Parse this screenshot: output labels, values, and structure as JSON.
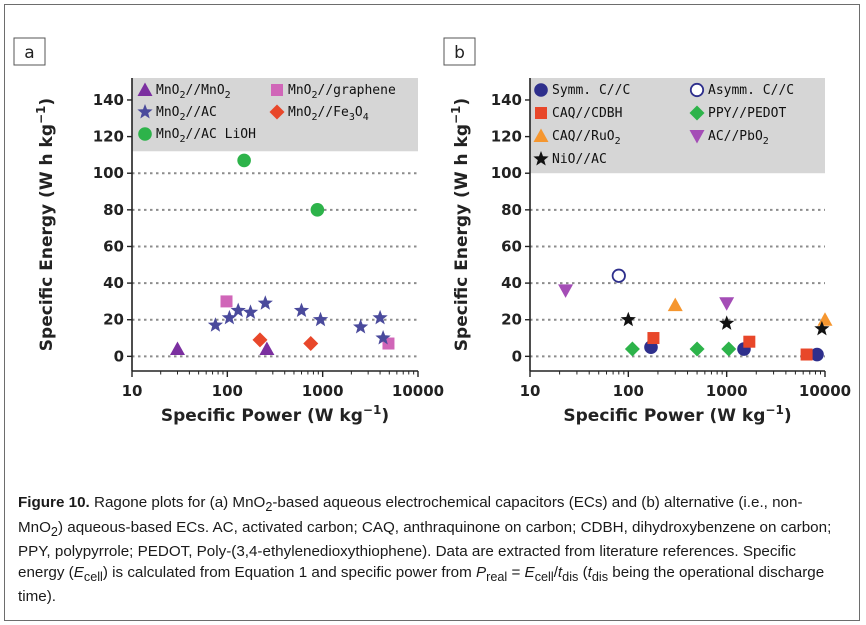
{
  "chart_data": [
    {
      "panel": "a",
      "type": "scatter",
      "xlabel_main": "Specific Power (W kg",
      "xlabel_sup": "−1",
      "xlabel_end": ")",
      "ylabel_main": "Specific Energy (W h kg",
      "ylabel_sup": "−1",
      "ylabel_end": ")",
      "xscale": "log",
      "xlim": [
        10,
        10000
      ],
      "ylim": [
        -8,
        152
      ],
      "shaded_above_y": 112,
      "xticks": [
        10,
        100,
        1000,
        10000
      ],
      "xticklabels": [
        "10",
        "100",
        "1000",
        "10000"
      ],
      "yticks": [
        0,
        20,
        40,
        60,
        80,
        100,
        120,
        140
      ],
      "yticklabels": [
        "0",
        "20",
        "40",
        "60",
        "80",
        "100",
        "120",
        "140"
      ],
      "grid": "dotted horizontal",
      "legend_position": "top",
      "series": [
        {
          "name_main": "MnO",
          "name_sub": "2",
          "name_rest": "//MnO",
          "name_sub2": "2",
          "marker": "triangle-up",
          "color": "#7b2fa0",
          "points": [
            [
              30,
              4
            ],
            [
              260,
              4
            ]
          ]
        },
        {
          "name_main": "MnO",
          "name_sub": "2",
          "name_rest": "//graphene",
          "name_sub2": "",
          "marker": "square",
          "color": "#d066b8",
          "points": [
            [
              98,
              30
            ],
            [
              4900,
              7
            ]
          ]
        },
        {
          "name_main": "MnO",
          "name_sub": "2",
          "name_rest": "//AC",
          "name_sub2": "",
          "marker": "star",
          "color": "#4a4a9c",
          "points": [
            [
              75,
              17
            ],
            [
              105,
              21
            ],
            [
              130,
              25
            ],
            [
              175,
              24
            ],
            [
              250,
              29
            ],
            [
              600,
              25
            ],
            [
              950,
              20
            ],
            [
              2500,
              16
            ],
            [
              4000,
              21
            ],
            [
              4300,
              10
            ]
          ]
        },
        {
          "name_main": "MnO",
          "name_sub": "2",
          "name_rest": "//Fe",
          "name_sub2": "3",
          "name_rest2": "O",
          "name_sub3": "4",
          "marker": "diamond",
          "color": "#e8472a",
          "points": [
            [
              220,
              9
            ],
            [
              750,
              7
            ]
          ]
        },
        {
          "name_main": "MnO",
          "name_sub": "2",
          "name_rest": "//AC LiOH",
          "name_sub2": "",
          "marker": "circle",
          "color": "#2db34a",
          "points": [
            [
              150,
              107
            ],
            [
              880,
              80
            ]
          ]
        }
      ],
      "panel_tag": "a"
    },
    {
      "panel": "b",
      "type": "scatter",
      "xlabel_main": "Specific Power (W kg",
      "xlabel_sup": "−1",
      "xlabel_end": ")",
      "ylabel_main": "Specific Energy (W h kg",
      "ylabel_sup": "−1",
      "ylabel_end": ")",
      "xscale": "log",
      "xlim": [
        10,
        10000
      ],
      "ylim": [
        -8,
        152
      ],
      "shaded_above_y": 100,
      "xticks": [
        10,
        100,
        1000,
        10000
      ],
      "xticklabels": [
        "10",
        "100",
        "1000",
        "10000"
      ],
      "yticks": [
        0,
        20,
        40,
        60,
        80,
        100,
        120,
        140
      ],
      "yticklabels": [
        "0",
        "20",
        "40",
        "60",
        "80",
        "100",
        "120",
        "140"
      ],
      "grid": "dotted horizontal",
      "legend_position": "top",
      "series": [
        {
          "name_main": "Symm. C//C",
          "marker": "circle",
          "color": "#2e2f8c",
          "points": [
            [
              170,
              5
            ],
            [
              1500,
              4
            ],
            [
              8300,
              1
            ]
          ]
        },
        {
          "name_main": "Asymm. C//C",
          "marker": "circle-open",
          "color": "#2e2f8c",
          "points": [
            [
              80,
              44
            ]
          ]
        },
        {
          "name_main": "CAQ//CDBH",
          "marker": "square",
          "color": "#e8472a",
          "points": [
            [
              180,
              10
            ],
            [
              1700,
              8
            ],
            [
              6500,
              1
            ]
          ]
        },
        {
          "name_main": "PPY//PEDOT",
          "marker": "diamond",
          "color": "#2db34a",
          "points": [
            [
              110,
              4
            ],
            [
              500,
              4
            ],
            [
              1050,
              4
            ]
          ]
        },
        {
          "name_main": "CAQ//RuO",
          "name_sub": "2",
          "marker": "triangle-up",
          "color": "#f5962f",
          "points": [
            [
              300,
              28
            ],
            [
              10000,
              20
            ]
          ]
        },
        {
          "name_main": "AC//PbO",
          "name_sub": "2",
          "marker": "triangle-down",
          "color": "#a44db6",
          "points": [
            [
              23,
              36
            ],
            [
              1000,
              29
            ]
          ]
        },
        {
          "name_main": "NiO//AC",
          "marker": "star",
          "color": "#111111",
          "points": [
            [
              100,
              20
            ],
            [
              1000,
              18
            ],
            [
              9300,
              15
            ]
          ]
        }
      ],
      "panel_tag": "b"
    }
  ],
  "caption": {
    "figure_label": "Figure 10.",
    "p1": " Ragone plots for (a) MnO",
    "p1_sub": "2",
    "p2": "-based aqueous electrochemical capacitors (ECs) and (b) alternative (i.e., non-MnO",
    "p2_sub": "2",
    "p3": ") aqueous-based ECs. AC, activated carbon; CAQ, anthraquinone on carbon; CDBH, dihydroxybenzene on carbon; PPY, polypyrrole; PEDOT, Poly-(3,4-ethylenedioxythiophene). Data are extracted from literature references. Specific energy (",
    "e_sym": "E",
    "e_sub": "cell",
    "p4": ") is calculated from Equation 1 and specific power from ",
    "preal_sym": "P",
    "preal_sub": "real",
    "p5": " = ",
    "e2_sym": "E",
    "e2_sub": "cell",
    "p6": "/",
    "t_sym": "t",
    "t_sub": "dis",
    "p7": " (",
    "t2_sym": "t",
    "t2_sub": "dis",
    "p8": " being the operational discharge time)."
  },
  "colors": {
    "shade": "#d6d6d6",
    "grid": "#8c8c8c",
    "axis": "#222222"
  }
}
